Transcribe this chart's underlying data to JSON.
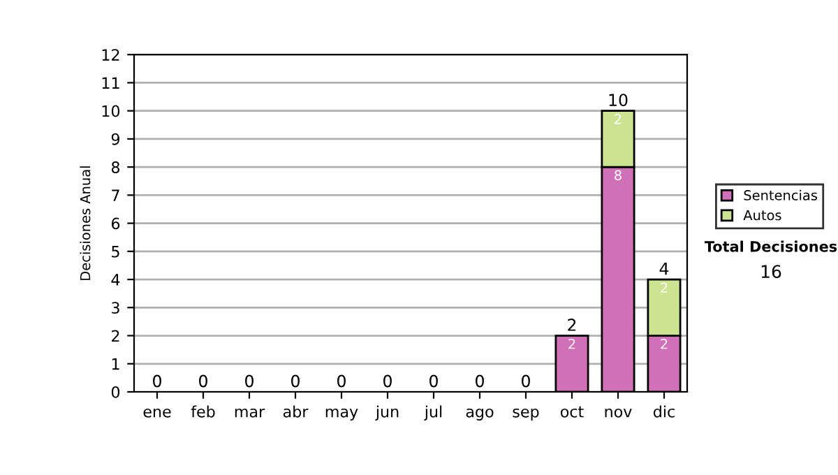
{
  "chart_data": {
    "type": "bar",
    "stacked": true,
    "ylabel": "Decisiones Anual",
    "categories": [
      "ene",
      "feb",
      "mar",
      "abr",
      "may",
      "jun",
      "jul",
      "ago",
      "sep",
      "oct",
      "nov",
      "dic"
    ],
    "series": [
      {
        "name": "Sentencias",
        "color": "#d070b8",
        "values": [
          0,
          0,
          0,
          0,
          0,
          0,
          0,
          0,
          0,
          2,
          8,
          2
        ],
        "value_labels": [
          null,
          null,
          null,
          null,
          null,
          null,
          null,
          null,
          null,
          "2",
          "8",
          "2"
        ]
      },
      {
        "name": "Autos",
        "color": "#cce490",
        "values": [
          0,
          0,
          0,
          0,
          0,
          0,
          0,
          0,
          0,
          0,
          2,
          2
        ],
        "value_labels": [
          null,
          null,
          null,
          null,
          null,
          null,
          null,
          null,
          null,
          null,
          "2",
          "2"
        ]
      }
    ],
    "totals": [
      "0",
      "0",
      "0",
      "0",
      "0",
      "0",
      "0",
      "0",
      "0",
      "2",
      "10",
      "4"
    ],
    "ylim": [
      0,
      12
    ],
    "yticks": [
      0,
      1,
      2,
      3,
      4,
      5,
      6,
      7,
      8,
      9,
      10,
      11,
      12
    ],
    "grid": "y",
    "legend": "right",
    "annotations": [
      "Total Decisiones",
      "16"
    ]
  }
}
